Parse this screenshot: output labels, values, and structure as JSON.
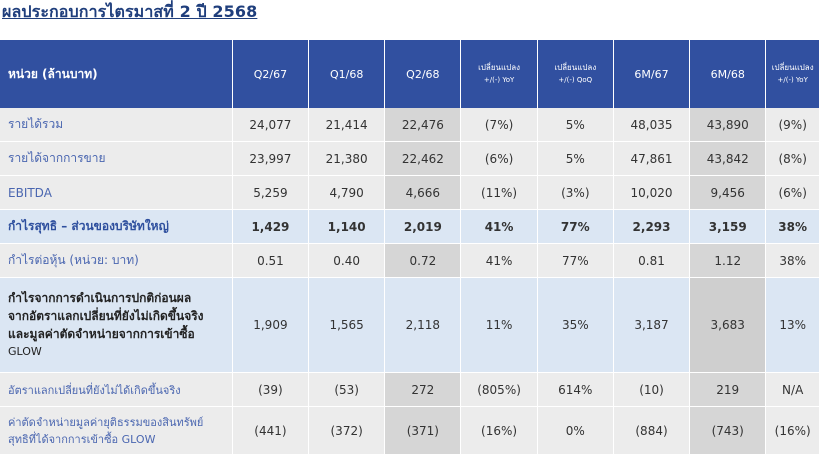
{
  "title": "ผลประกอบการไตรมาสที่ 2 ปี 2568",
  "headers": {
    "unit": "หน่วย (ล้านบาท)",
    "cols": [
      {
        "main": "Q2/67",
        "sub": ""
      },
      {
        "main": "Q1/68",
        "sub": ""
      },
      {
        "main": "Q2/68",
        "sub": ""
      },
      {
        "main": "เปลี่ยนแปลง",
        "sub": "+/(-) YoY"
      },
      {
        "main": "เปลี่ยนแปลง",
        "sub": "+/(-) QoQ"
      },
      {
        "main": "6M/67",
        "sub": ""
      },
      {
        "main": "6M/68",
        "sub": ""
      },
      {
        "main": "เปลี่ยนแปลง",
        "sub": "+/(-) YoY"
      }
    ]
  },
  "rows": [
    {
      "label": "รายได้รวม",
      "values": [
        "24,077",
        "21,414",
        "22,476",
        "(7%)",
        "5%",
        "48,035",
        "43,890",
        "(9%)"
      ]
    },
    {
      "label": "รายได้จากการขาย",
      "values": [
        "23,997",
        "21,380",
        "22,462",
        "(6%)",
        "5%",
        "47,861",
        "43,842",
        "(8%)"
      ]
    },
    {
      "label": "EBITDA",
      "values": [
        "5,259",
        "4,790",
        "4,666",
        "(11%)",
        "(3%)",
        "10,020",
        "9,456",
        "(6%)"
      ]
    },
    {
      "label": "กำไรสุทธิ – ส่วนของบริษัทใหญ่",
      "values": [
        "1,429",
        "1,140",
        "2,019",
        "41%",
        "77%",
        "2,293",
        "3,159",
        "38%"
      ]
    },
    {
      "label": "กำไรต่อหุ้น (หน่วย: บาท)",
      "values": [
        "0.51",
        "0.40",
        "0.72",
        "41%",
        "77%",
        "0.81",
        "1.12",
        "38%"
      ]
    },
    {
      "label_lines": [
        "กำไรจากการดำเนินการปกติก่อนผล",
        "จากอัตราแลกเปลี่ยนที่ยังไม่เกิดขึ้นจริง",
        "และมูลค่าตัดจำหน่ายจากการเข้าซื้อ",
        "GLOW"
      ],
      "values": [
        "1,909",
        "1,565",
        "2,118",
        "11%",
        "35%",
        "3,187",
        "3,683",
        "13%"
      ]
    },
    {
      "label": "อัตราแลกเปลี่ยนที่ยังไม่ได้เกิดขึ้นจริง",
      "values": [
        "(39)",
        "(53)",
        "272",
        "(805%)",
        "614%",
        "(10)",
        "219",
        "N/A"
      ]
    },
    {
      "label_lines": [
        "ค่าตัดจำหน่ายมูลค่ายุติธรรมของสินทรัพย์",
        "สุทธิที่ได้จากการเข้าซื้อ  GLOW"
      ],
      "values": [
        "(441)",
        "(372)",
        "(371)",
        "(16%)",
        "0%",
        "(884)",
        "(743)",
        "(16%)"
      ]
    }
  ]
}
